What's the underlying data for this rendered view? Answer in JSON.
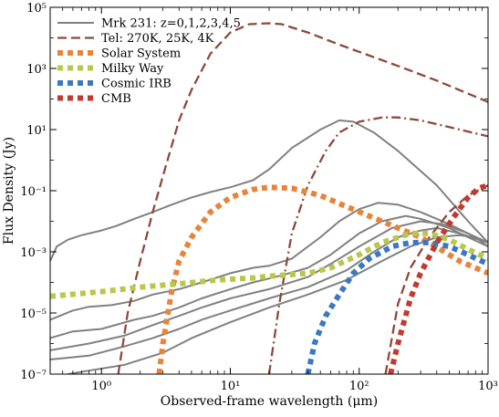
{
  "chart_data": {
    "type": "line",
    "xlabel": "Observed-frame wavelength (μm)",
    "ylabel": "Flux Density (Jy)",
    "xscale": "log",
    "yscale": "log",
    "xlim": [
      0.4,
      1000
    ],
    "ylim": [
      1e-07,
      100000.0
    ],
    "x_ticks": [
      {
        "value": 1,
        "label": "10⁰"
      },
      {
        "value": 10,
        "label": "10¹"
      },
      {
        "value": 100,
        "label": "10²"
      },
      {
        "value": 1000,
        "label": "10³"
      }
    ],
    "y_ticks": [
      {
        "value": 1e-07,
        "label": "10⁻⁷"
      },
      {
        "value": 1e-05,
        "label": "10⁻⁵"
      },
      {
        "value": 0.001,
        "label": "10⁻³"
      },
      {
        "value": 0.1,
        "label": "10⁻¹"
      },
      {
        "value": 10,
        "label": "10¹"
      },
      {
        "value": 1000,
        "label": "10³"
      },
      {
        "value": 100000,
        "label": "10⁵"
      }
    ],
    "legend_position": "top-left",
    "legend": [
      {
        "label": "Mrk 231: z=0,1,2,3,4,5",
        "color": "#808080",
        "style": "solid"
      },
      {
        "label": "Tel: 270K, 25K, 4K",
        "color": "#8c4a3a",
        "style": "dashed"
      },
      {
        "label": "Solar System",
        "color": "#e8843a",
        "style": "dotted"
      },
      {
        "label": "Milky Way",
        "color": "#b9c84a",
        "style": "dotted"
      },
      {
        "label": "Cosmic IRB",
        "color": "#3a78c0",
        "style": "dotted"
      },
      {
        "label": "CMB",
        "color": "#c03a32",
        "style": "dotted"
      }
    ],
    "series": [
      {
        "group": "mrk231",
        "color": "#808080",
        "style": "solid",
        "points": [
          [
            0.4,
            0.0005
          ],
          [
            0.45,
            0.0015
          ],
          [
            0.55,
            0.0025
          ],
          [
            0.7,
            0.0035
          ],
          [
            1.0,
            0.005
          ],
          [
            1.3,
            0.007
          ],
          [
            1.8,
            0.012
          ],
          [
            2.5,
            0.02
          ],
          [
            3.5,
            0.035
          ],
          [
            5,
            0.06
          ],
          [
            7,
            0.09
          ],
          [
            10,
            0.13
          ],
          [
            15,
            0.22
          ],
          [
            20,
            0.5
          ],
          [
            30,
            2.5
          ],
          [
            50,
            10
          ],
          [
            70,
            20
          ],
          [
            90,
            18
          ],
          [
            130,
            8
          ],
          [
            200,
            2
          ],
          [
            400,
            0.15
          ],
          [
            700,
            0.01
          ],
          [
            1000,
            0.002
          ]
        ]
      },
      {
        "group": "mrk231",
        "color": "#808080",
        "style": "solid",
        "points": [
          [
            0.4,
            6e-06
          ],
          [
            0.6,
            1.2e-05
          ],
          [
            0.8,
            1.6e-05
          ],
          [
            1.2,
            1.8e-05
          ],
          [
            1.8,
            2.5e-05
          ],
          [
            2.5,
            4e-05
          ],
          [
            4,
            6e-05
          ],
          [
            6,
            0.0001
          ],
          [
            10,
            0.0002
          ],
          [
            15,
            0.0003
          ],
          [
            20,
            0.00035
          ],
          [
            30,
            0.0006
          ],
          [
            50,
            0.003
          ],
          [
            70,
            0.01
          ],
          [
            100,
            0.025
          ],
          [
            140,
            0.04
          ],
          [
            200,
            0.035
          ],
          [
            300,
            0.02
          ],
          [
            500,
            0.008
          ],
          [
            800,
            0.003
          ],
          [
            1000,
            0.0015
          ]
        ]
      },
      {
        "group": "mrk231",
        "color": "#808080",
        "style": "solid",
        "points": [
          [
            0.4,
            1.5e-06
          ],
          [
            0.6,
            2.5e-06
          ],
          [
            1.0,
            3e-06
          ],
          [
            1.8,
            6e-06
          ],
          [
            2.5,
            8e-06
          ],
          [
            4,
            1.5e-05
          ],
          [
            6,
            3e-05
          ],
          [
            10,
            6e-05
          ],
          [
            15,
            0.0001
          ],
          [
            25,
            0.00017
          ],
          [
            40,
            0.0003
          ],
          [
            60,
            0.0008
          ],
          [
            100,
            0.004
          ],
          [
            150,
            0.01
          ],
          [
            230,
            0.015
          ],
          [
            300,
            0.012
          ],
          [
            500,
            0.006
          ],
          [
            700,
            0.003
          ],
          [
            1000,
            0.0015
          ]
        ]
      },
      {
        "group": "mrk231",
        "color": "#808080",
        "style": "solid",
        "points": [
          [
            0.4,
            6e-07
          ],
          [
            0.8,
            1e-06
          ],
          [
            1.5,
            1.8e-06
          ],
          [
            2.5,
            4e-06
          ],
          [
            4,
            8e-06
          ],
          [
            6,
            1.5e-05
          ],
          [
            10,
            3e-05
          ],
          [
            20,
            6e-05
          ],
          [
            40,
            0.00015
          ],
          [
            60,
            0.0004
          ],
          [
            100,
            0.0015
          ],
          [
            180,
            0.006
          ],
          [
            300,
            0.01
          ],
          [
            450,
            0.008
          ],
          [
            700,
            0.004
          ],
          [
            1000,
            0.002
          ]
        ]
      },
      {
        "group": "mrk231",
        "color": "#808080",
        "style": "solid",
        "points": [
          [
            0.4,
            3e-07
          ],
          [
            0.8,
            4e-07
          ],
          [
            1.5,
            8e-07
          ],
          [
            2.5,
            1.5e-06
          ],
          [
            4,
            3e-06
          ],
          [
            6,
            6e-06
          ],
          [
            10,
            1.2e-05
          ],
          [
            20,
            3e-05
          ],
          [
            40,
            7e-05
          ],
          [
            80,
            0.00025
          ],
          [
            130,
            0.001
          ],
          [
            200,
            0.003
          ],
          [
            300,
            0.005
          ],
          [
            400,
            0.006
          ],
          [
            600,
            0.004
          ],
          [
            1000,
            0.002
          ]
        ]
      },
      {
        "group": "mrk231",
        "color": "#808080",
        "style": "solid",
        "points": [
          [
            0.55,
            1e-07
          ],
          [
            0.8,
            1.3e-07
          ],
          [
            1.5,
            2e-07
          ],
          [
            3,
            5e-07
          ],
          [
            5,
            1.5e-06
          ],
          [
            10,
            5e-06
          ],
          [
            20,
            1.5e-05
          ],
          [
            40,
            4e-05
          ],
          [
            80,
            0.00012
          ],
          [
            150,
            0.0005
          ],
          [
            250,
            0.0015
          ],
          [
            400,
            0.003
          ],
          [
            600,
            0.0035
          ],
          [
            800,
            0.003
          ],
          [
            1000,
            0.002
          ]
        ]
      },
      {
        "group": "telescope",
        "color": "#8c4a3a",
        "style": "dashed",
        "points": [
          [
            1.35,
            1e-07
          ],
          [
            1.6,
            1e-05
          ],
          [
            2,
            0.0005
          ],
          [
            2.5,
            0.02
          ],
          [
            3,
            0.3
          ],
          [
            4,
            20
          ],
          [
            5,
            200
          ],
          [
            7,
            3000
          ],
          [
            10,
            15000
          ],
          [
            14,
            28000
          ],
          [
            20,
            30000
          ],
          [
            25,
            28000
          ],
          [
            40,
            15000
          ],
          [
            70,
            6000
          ],
          [
            100,
            3500
          ],
          [
            200,
            1200
          ],
          [
            400,
            400
          ],
          [
            1000,
            80
          ]
        ]
      },
      {
        "group": "telescope",
        "color": "#8c4a3a",
        "style": "dashdot",
        "points": [
          [
            20,
            1e-07
          ],
          [
            24,
            2e-05
          ],
          [
            30,
            0.004
          ],
          [
            40,
            0.15
          ],
          [
            55,
            2
          ],
          [
            70,
            8
          ],
          [
            100,
            18
          ],
          [
            150,
            25
          ],
          [
            200,
            25
          ],
          [
            300,
            20
          ],
          [
            500,
            12
          ],
          [
            1000,
            6
          ]
        ]
      },
      {
        "group": "telescope",
        "color": "#8c4a3a",
        "style": "dashed",
        "points": [
          [
            160,
            1e-07
          ],
          [
            200,
            2e-05
          ],
          [
            250,
            0.0003
          ],
          [
            350,
            0.003
          ],
          [
            500,
            0.02
          ],
          [
            700,
            0.07
          ],
          [
            1000,
            0.15
          ]
        ]
      },
      {
        "group": "solar",
        "color": "#e8843a",
        "style": "dotted",
        "points": [
          [
            2.8,
            1e-07
          ],
          [
            3,
            1e-06
          ],
          [
            3.5,
            5e-05
          ],
          [
            4,
            0.0005
          ],
          [
            5,
            0.003
          ],
          [
            7,
            0.02
          ],
          [
            10,
            0.06
          ],
          [
            15,
            0.11
          ],
          [
            20,
            0.13
          ],
          [
            30,
            0.12
          ],
          [
            50,
            0.07
          ],
          [
            80,
            0.03
          ],
          [
            150,
            0.01
          ],
          [
            300,
            0.003
          ],
          [
            600,
            0.0005
          ],
          [
            1000,
            0.0002
          ]
        ]
      },
      {
        "group": "milkyway",
        "color": "#b9c84a",
        "style": "dotted",
        "points": [
          [
            0.4,
            3.5e-05
          ],
          [
            1,
            5e-05
          ],
          [
            2,
            7e-05
          ],
          [
            4,
            9e-05
          ],
          [
            8,
            0.00012
          ],
          [
            15,
            0.00014
          ],
          [
            20,
            0.00016
          ],
          [
            30,
            0.00018
          ],
          [
            40,
            0.0002
          ],
          [
            60,
            0.0003
          ],
          [
            100,
            0.0008
          ],
          [
            150,
            0.002
          ],
          [
            250,
            0.004
          ],
          [
            350,
            0.004
          ],
          [
            500,
            0.0025
          ],
          [
            700,
            0.0012
          ],
          [
            1000,
            0.0006
          ]
        ]
      },
      {
        "group": "cirb",
        "color": "#3a78c0",
        "style": "dotted",
        "points": [
          [
            40,
            1e-07
          ],
          [
            45,
            1e-06
          ],
          [
            55,
            8e-06
          ],
          [
            70,
            4e-05
          ],
          [
            90,
            0.0002
          ],
          [
            120,
            0.0006
          ],
          [
            180,
            0.0015
          ],
          [
            250,
            0.002
          ],
          [
            350,
            0.002
          ],
          [
            500,
            0.0015
          ],
          [
            700,
            0.0008
          ],
          [
            1000,
            0.0004
          ]
        ]
      },
      {
        "group": "cmb",
        "color": "#c03a32",
        "style": "dotted",
        "points": [
          [
            175,
            1e-07
          ],
          [
            200,
            1e-06
          ],
          [
            250,
            3e-05
          ],
          [
            300,
            0.0002
          ],
          [
            400,
            0.002
          ],
          [
            550,
            0.015
          ],
          [
            700,
            0.06
          ],
          [
            850,
            0.12
          ],
          [
            1000,
            0.15
          ]
        ]
      }
    ]
  }
}
